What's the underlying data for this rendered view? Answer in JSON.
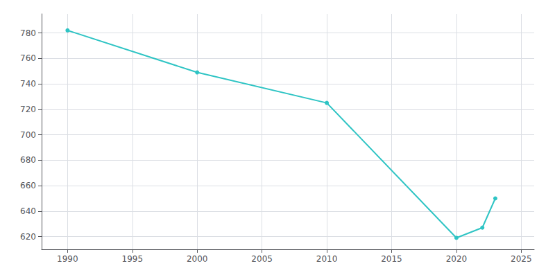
{
  "chart_data": {
    "type": "line",
    "x": [
      1990,
      2000,
      2010,
      2020,
      2022,
      2023
    ],
    "values": [
      782,
      749,
      725,
      619,
      627,
      650
    ],
    "color": "#2EC4C4",
    "marker": "circle",
    "xlim": [
      1988,
      2026
    ],
    "ylim": [
      610,
      795
    ],
    "xticks": [
      1990,
      1995,
      2000,
      2005,
      2010,
      2015,
      2020,
      2025
    ],
    "yticks": [
      620,
      640,
      660,
      680,
      700,
      720,
      740,
      760,
      780
    ],
    "grid": true
  }
}
